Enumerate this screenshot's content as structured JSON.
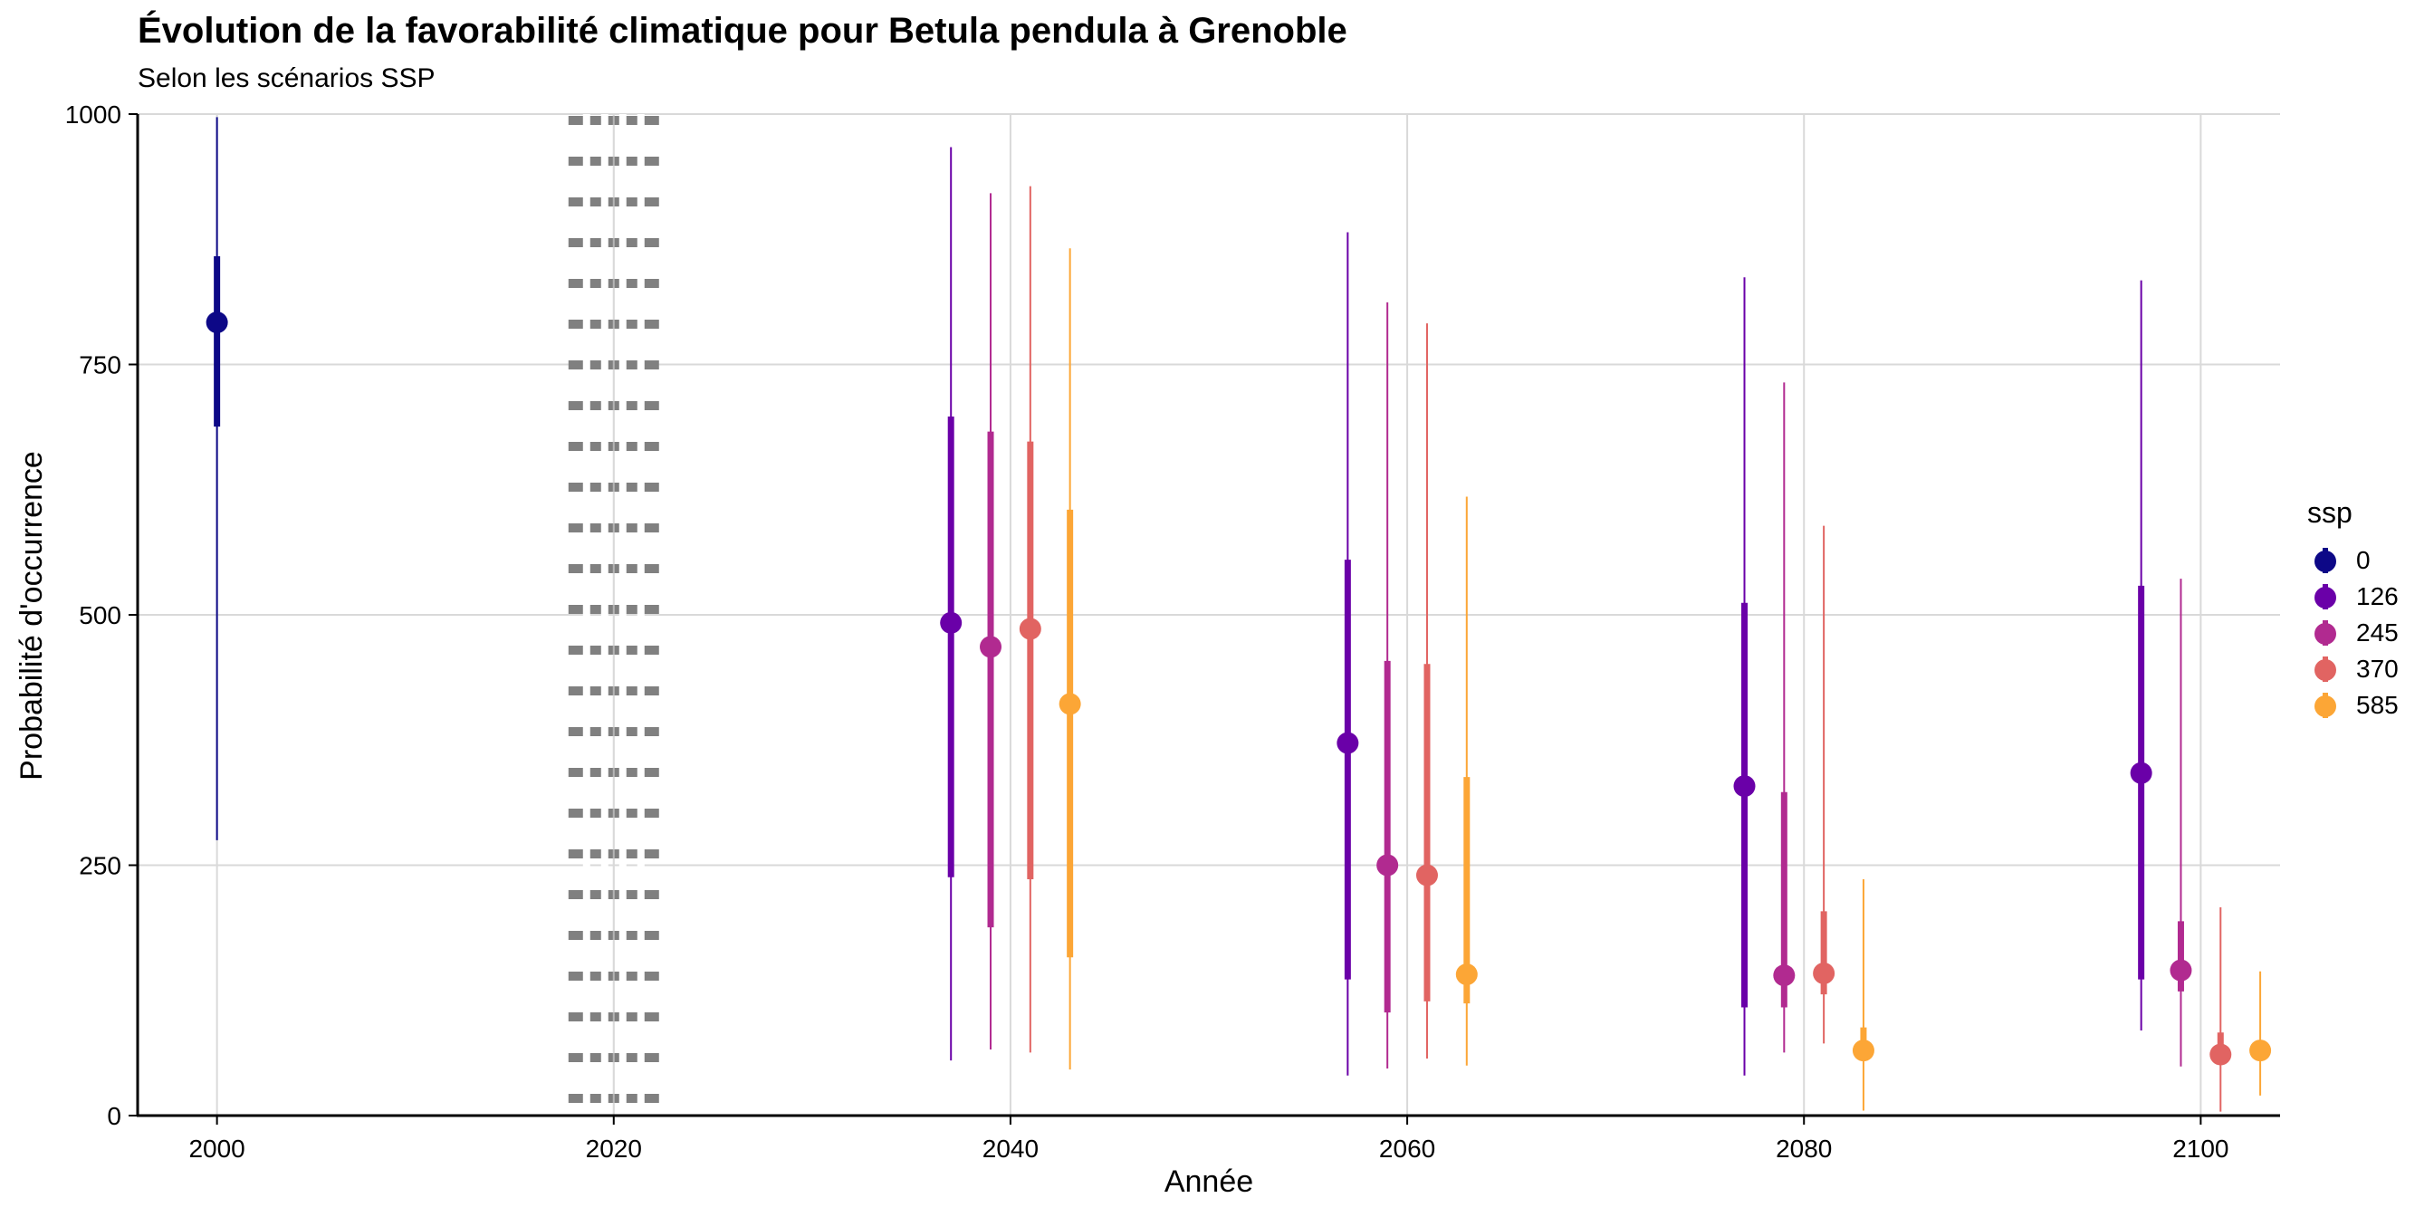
{
  "chart_data": {
    "type": "pointrange",
    "title": "Évolution de la favorabilité climatique pour Betula pendula à Grenoble",
    "subtitle": "Selon les scénarios SSP",
    "xlabel": "Année",
    "ylabel": "Probabilité d'occurrence",
    "xlim": [
      1996,
      2104
    ],
    "ylim": [
      0,
      1000
    ],
    "x_ticks": [
      2000,
      2020,
      2040,
      2060,
      2080,
      2100
    ],
    "y_ticks": [
      0,
      250,
      500,
      750,
      1000
    ],
    "reference_line": {
      "x": 2020,
      "style": "dotted"
    },
    "legend": {
      "title": "ssp",
      "entries": [
        {
          "name": "0",
          "color": "#0D0887"
        },
        {
          "name": "126",
          "color": "#6A00A8"
        },
        {
          "name": "245",
          "color": "#B12A90"
        },
        {
          "name": "370",
          "color": "#E16462"
        },
        {
          "name": "585",
          "color": "#FCA636"
        }
      ]
    },
    "series": [
      {
        "name": "0",
        "color": "#0D0887",
        "points": [
          {
            "x": 2000,
            "y": 792,
            "inner": [
              688,
              858
            ],
            "outer": [
              275,
              997
            ]
          }
        ]
      },
      {
        "name": "126",
        "color": "#6A00A8",
        "points": [
          {
            "x": 2037,
            "y": 492,
            "inner": [
              238,
              698
            ],
            "outer": [
              55,
              967
            ]
          },
          {
            "x": 2057,
            "y": 372,
            "inner": [
              136,
              555
            ],
            "outer": [
              40,
              882
            ]
          },
          {
            "x": 2077,
            "y": 329,
            "inner": [
              108,
              512
            ],
            "outer": [
              40,
              837
            ]
          },
          {
            "x": 2097,
            "y": 342,
            "inner": [
              136,
              529
            ],
            "outer": [
              85,
              834
            ]
          }
        ]
      },
      {
        "name": "245",
        "color": "#B12A90",
        "points": [
          {
            "x": 2039,
            "y": 468,
            "inner": [
              188,
              683
            ],
            "outer": [
              66,
              921
            ]
          },
          {
            "x": 2059,
            "y": 250,
            "inner": [
              103,
              454
            ],
            "outer": [
              47,
              812
            ]
          },
          {
            "x": 2079,
            "y": 140,
            "inner": [
              108,
              323
            ],
            "outer": [
              63,
              732
            ]
          },
          {
            "x": 2099,
            "y": 145,
            "inner": [
              124,
              194
            ],
            "outer": [
              49,
              536
            ]
          }
        ]
      },
      {
        "name": "370",
        "color": "#E16462",
        "points": [
          {
            "x": 2041,
            "y": 486,
            "inner": [
              236,
              673
            ],
            "outer": [
              63,
              928
            ]
          },
          {
            "x": 2061,
            "y": 240,
            "inner": [
              114,
              451
            ],
            "outer": [
              57,
              791
            ]
          },
          {
            "x": 2081,
            "y": 142,
            "inner": [
              121,
              204
            ],
            "outer": [
              72,
              589
            ]
          },
          {
            "x": 2101,
            "y": 61,
            "inner": [
              53,
              83
            ],
            "outer": [
              4,
              208
            ]
          }
        ]
      },
      {
        "name": "585",
        "color": "#FCA636",
        "points": [
          {
            "x": 2043,
            "y": 411,
            "inner": [
              158,
              605
            ],
            "outer": [
              46,
              866
            ]
          },
          {
            "x": 2063,
            "y": 141,
            "inner": [
              112,
              338
            ],
            "outer": [
              50,
              618
            ]
          },
          {
            "x": 2083,
            "y": 65,
            "inner": [
              58,
              88
            ],
            "outer": [
              5,
              236
            ]
          },
          {
            "x": 2103,
            "y": 65,
            "inner": [
              58,
              72
            ],
            "outer": [
              20,
              144
            ]
          }
        ]
      }
    ]
  }
}
